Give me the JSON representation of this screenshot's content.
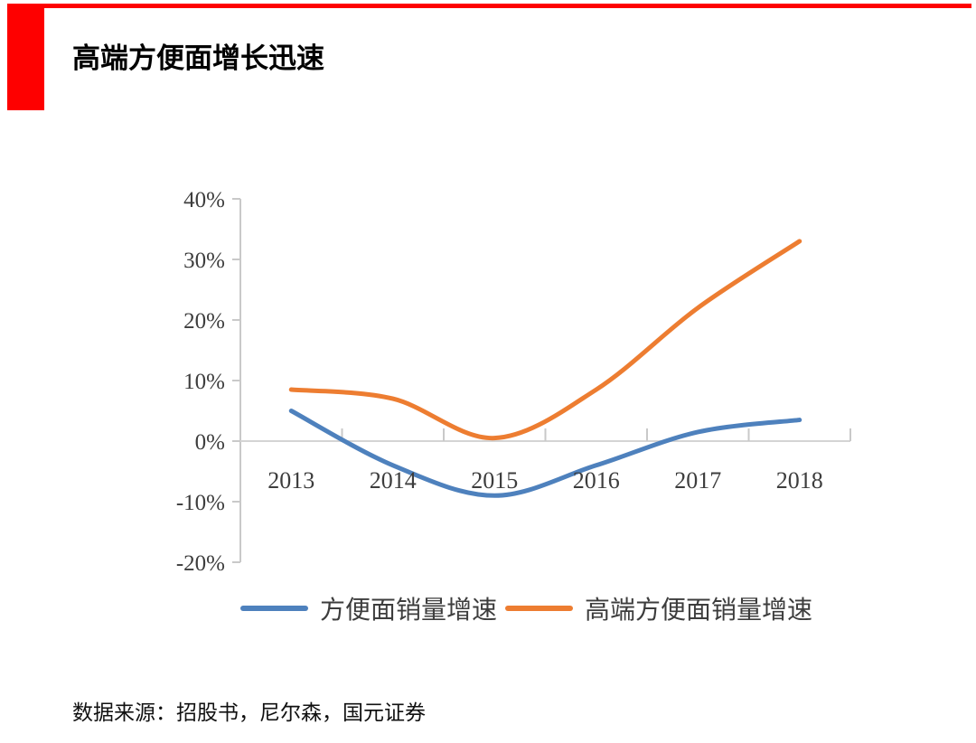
{
  "page": {
    "accent_color": "#fe0000",
    "background": "#ffffff"
  },
  "header": {
    "title": "高端方便面增长迅速"
  },
  "chart_data": {
    "type": "line",
    "title": "高端方便面增长迅速",
    "categories": [
      "2013",
      "2014",
      "2015",
      "2016",
      "2017",
      "2018"
    ],
    "series": [
      {
        "name": "方便面销量增速",
        "color": "#4E81BD",
        "values": [
          5,
          -4,
          -9,
          -4,
          1.5,
          3.5
        ]
      },
      {
        "name": "高端方便面销量增速",
        "color": "#ED7D31",
        "values": [
          8.5,
          7,
          0.5,
          8.5,
          22,
          33
        ]
      }
    ],
    "xlabel": "",
    "ylabel": "",
    "ylim": [
      -20,
      40
    ],
    "y_ticks": [
      40,
      30,
      20,
      10,
      0,
      -10,
      -20
    ],
    "y_tick_suffix": "%",
    "grid": "zero-baseline-only",
    "smooth": true,
    "legend_position": "bottom",
    "axis_color": "#c9c9c9",
    "zero_line_color": "#d4d4d4"
  },
  "footer": {
    "source": "数据来源：招股书，尼尔森，国元证券"
  }
}
